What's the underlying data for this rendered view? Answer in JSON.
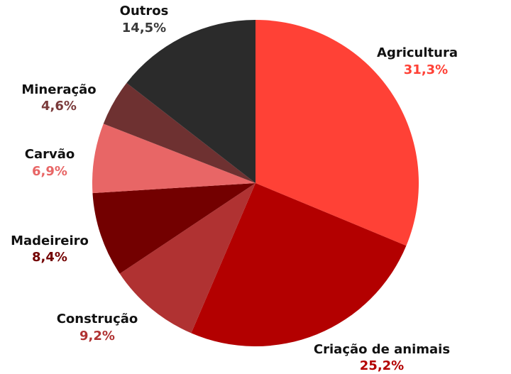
{
  "chart_data": {
    "type": "pie",
    "categories": [
      "Agricultura",
      "Criação de animais",
      "Construção",
      "Madeireiro",
      "Carvão",
      "Mineração",
      "Outros"
    ],
    "values": [
      31.3,
      25.2,
      9.2,
      8.4,
      6.9,
      4.6,
      14.5
    ],
    "value_labels": [
      "31,3%",
      "25,2%",
      "9,2%",
      "8,4%",
      "6,9%",
      "4,6%",
      "14,5%"
    ],
    "colors": [
      "#ff4136",
      "#b30000",
      "#b03232",
      "#730000",
      "#e86666",
      "#6e3131",
      "#2b2b2b"
    ]
  }
}
